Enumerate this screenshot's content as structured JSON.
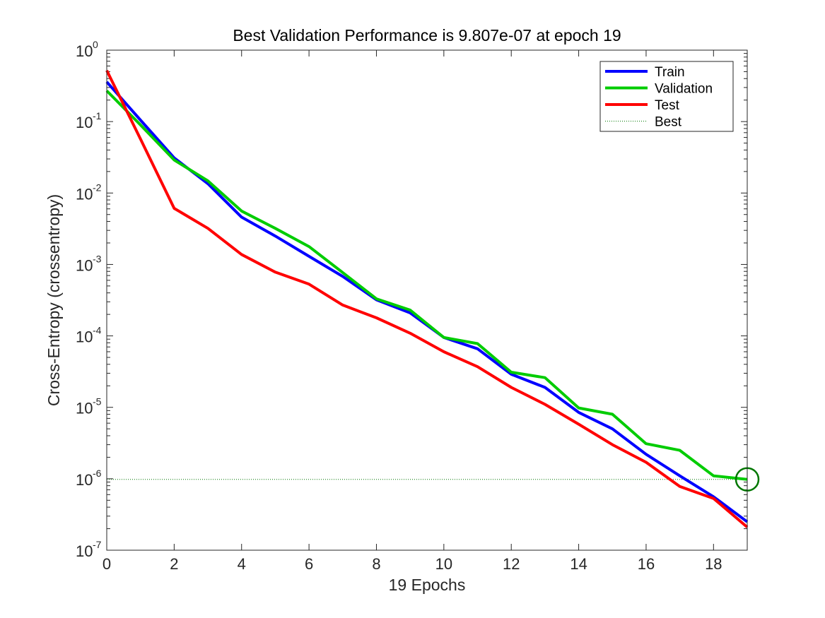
{
  "chart_data": {
    "type": "line",
    "title": "Best Validation Performance is 9.807e-07 at epoch 19",
    "xlabel": "19 Epochs",
    "ylabel": "Cross-Entropy  (crossentropy)",
    "xlim": [
      0,
      19
    ],
    "ylim": [
      1e-07,
      1
    ],
    "yscale": "log",
    "x_ticks": [
      0,
      2,
      4,
      6,
      8,
      10,
      12,
      14,
      16,
      18
    ],
    "y_ticks": [
      {
        "base": "10",
        "exp": "0",
        "value": 1
      },
      {
        "base": "10",
        "exp": "-1",
        "value": 0.1
      },
      {
        "base": "10",
        "exp": "-2",
        "value": 0.01
      },
      {
        "base": "10",
        "exp": "-3",
        "value": 0.001
      },
      {
        "base": "10",
        "exp": "-4",
        "value": 0.0001
      },
      {
        "base": "10",
        "exp": "-5",
        "value": 1e-05
      },
      {
        "base": "10",
        "exp": "-6",
        "value": 1e-06
      },
      {
        "base": "10",
        "exp": "-7",
        "value": 1e-07
      }
    ],
    "x": [
      0,
      1,
      2,
      3,
      4,
      5,
      6,
      7,
      8,
      9,
      10,
      11,
      12,
      13,
      14,
      15,
      16,
      17,
      18,
      19
    ],
    "series": [
      {
        "name": "Train",
        "color": "#0000ff",
        "values": [
          0.36,
          0.105,
          0.031,
          0.0135,
          0.0046,
          0.0025,
          0.0013,
          0.00068,
          0.00032,
          0.00021,
          9.5e-05,
          6.6e-05,
          2.9e-05,
          1.9e-05,
          8.5e-06,
          5e-06,
          2.2e-06,
          1.1e-06,
          5.6e-07,
          2.5e-07
        ]
      },
      {
        "name": "Validation",
        "color": "#00cc00",
        "values": [
          0.27,
          0.09,
          0.029,
          0.0148,
          0.0056,
          0.0032,
          0.00178,
          0.00077,
          0.00033,
          0.00023,
          9.5e-05,
          7.8e-05,
          3.1e-05,
          2.6e-05,
          9.8e-06,
          8e-06,
          3.1e-06,
          2.5e-06,
          1.1e-06,
          9.807e-07
        ]
      },
      {
        "name": "Test",
        "color": "#ff0000",
        "values": [
          0.52,
          0.057,
          0.0061,
          0.0032,
          0.00138,
          0.00078,
          0.00053,
          0.00027,
          0.000179,
          0.000109,
          6e-05,
          3.7e-05,
          1.9e-05,
          1.1e-05,
          5.8e-06,
          3e-06,
          1.7e-06,
          7.8e-07,
          5.3e-07,
          2.1e-07
        ]
      }
    ],
    "best": {
      "name": "Best",
      "epoch": 19,
      "value": 9.807e-07,
      "color": "#007700"
    },
    "legend_position": "top-right",
    "grid": false
  }
}
